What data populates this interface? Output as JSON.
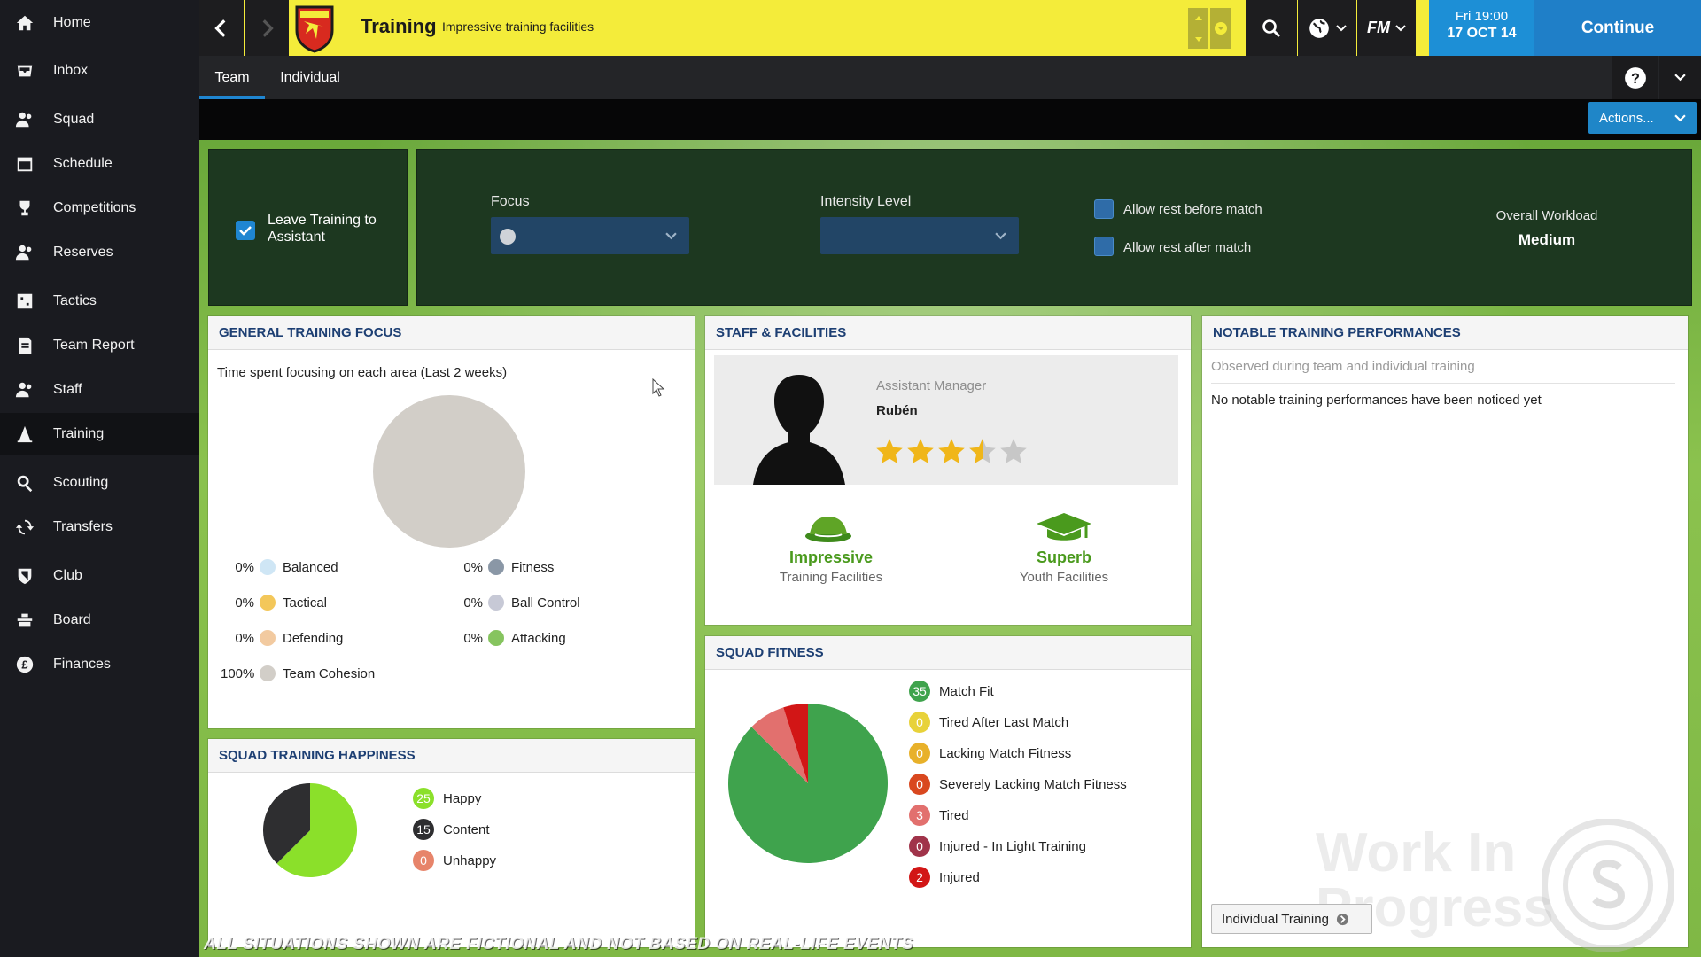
{
  "sidebar": {
    "items": [
      {
        "label": "Home",
        "icon": "home-icon"
      },
      {
        "label": "Inbox",
        "icon": "inbox-icon"
      },
      {
        "label": "Squad",
        "icon": "people-icon"
      },
      {
        "label": "Schedule",
        "icon": "calendar-icon"
      },
      {
        "label": "Competitions",
        "icon": "trophy-icon"
      },
      {
        "label": "Reserves",
        "icon": "people-icon"
      },
      {
        "label": "Tactics",
        "icon": "tactics-board-icon"
      },
      {
        "label": "Team Report",
        "icon": "report-icon"
      },
      {
        "label": "Staff",
        "icon": "people-icon"
      },
      {
        "label": "Training",
        "icon": "training-cone-icon",
        "active": true
      },
      {
        "label": "Scouting",
        "icon": "search-icon"
      },
      {
        "label": "Transfers",
        "icon": "transfer-icon"
      },
      {
        "label": "Club",
        "icon": "club-crest-icon"
      },
      {
        "label": "Board",
        "icon": "board-icon"
      },
      {
        "label": "Finances",
        "icon": "pound-icon"
      }
    ]
  },
  "topbar": {
    "title": "Training",
    "subtitle": "Impressive training facilities",
    "date_day": "Fri 19:00",
    "date_date": "17 OCT 14",
    "continue_label": "Continue",
    "fm_label": "FM",
    "colors": {
      "bar": "#f4ec3a",
      "date": "#1d8fd6",
      "continue": "#1f7fc8"
    }
  },
  "tabs": {
    "team": "Team",
    "individual": "Individual",
    "help": "?"
  },
  "actions": {
    "label": "Actions..."
  },
  "settings": {
    "leave_label": "Leave Training to Assistant",
    "focus_label": "Focus",
    "intensity_label": "Intensity Level",
    "rest_before_label": "Allow rest before match",
    "rest_after_label": "Allow rest after match",
    "workload_label": "Overall Workload",
    "workload_value": "Medium"
  },
  "general_focus": {
    "header": "GENERAL TRAINING FOCUS",
    "subtitle": "Time spent focusing on each area (Last 2 weeks)",
    "areas": [
      {
        "pct": "0%",
        "label": "Balanced",
        "color": "#cfe6f5"
      },
      {
        "pct": "0%",
        "label": "Fitness",
        "color": "#8a97a6"
      },
      {
        "pct": "0%",
        "label": "Tactical",
        "color": "#f3c75a"
      },
      {
        "pct": "0%",
        "label": "Ball Control",
        "color": "#c7c9d6"
      },
      {
        "pct": "0%",
        "label": "Defending",
        "color": "#f2caa0"
      },
      {
        "pct": "0%",
        "label": "Attacking",
        "color": "#86c45f"
      },
      {
        "pct": "100%",
        "label": "Team Cohesion",
        "color": "#d2cec8"
      }
    ]
  },
  "staff": {
    "header": "STAFF & FACILITIES",
    "role": "Assistant Manager",
    "name": "Rubén",
    "rating_stars": 3.5,
    "training_facilities_value": "Impressive",
    "training_facilities_label": "Training Facilities",
    "youth_facilities_value": "Superb",
    "youth_facilities_label": "Youth Facilities"
  },
  "notable": {
    "header": "NOTABLE TRAINING PERFORMANCES",
    "observed": "Observed during team and individual training",
    "empty": "No notable training performances have been noticed yet",
    "button": "Individual Training"
  },
  "happiness": {
    "header": "SQUAD TRAINING HAPPINESS",
    "items": [
      {
        "count": "25",
        "label": "Happy",
        "color": "#8be02a"
      },
      {
        "count": "15",
        "label": "Content",
        "color": "#2e2e30"
      },
      {
        "count": "0",
        "label": "Unhappy",
        "color": "#e7846a"
      }
    ]
  },
  "fitness": {
    "header": "SQUAD FITNESS",
    "items": [
      {
        "count": "35",
        "label": "Match Fit",
        "color": "#3fa34d"
      },
      {
        "count": "0",
        "label": "Tired After Last Match",
        "color": "#e8d23a"
      },
      {
        "count": "0",
        "label": "Lacking Match Fitness",
        "color": "#e8b12a"
      },
      {
        "count": "0",
        "label": "Severely Lacking Match Fitness",
        "color": "#d9481f"
      },
      {
        "count": "3",
        "label": "Tired",
        "color": "#e2706e"
      },
      {
        "count": "0",
        "label": "Injured - In Light Training",
        "color": "#a0334a"
      },
      {
        "count": "2",
        "label": "Injured",
        "color": "#d21616"
      }
    ]
  },
  "footer": {
    "disclaimer": "ALL SITUATIONS SHOWN ARE FICTIONAL AND NOT BASED ON REAL-LIFE EVENTS",
    "watermark": "Work In Progress"
  }
}
